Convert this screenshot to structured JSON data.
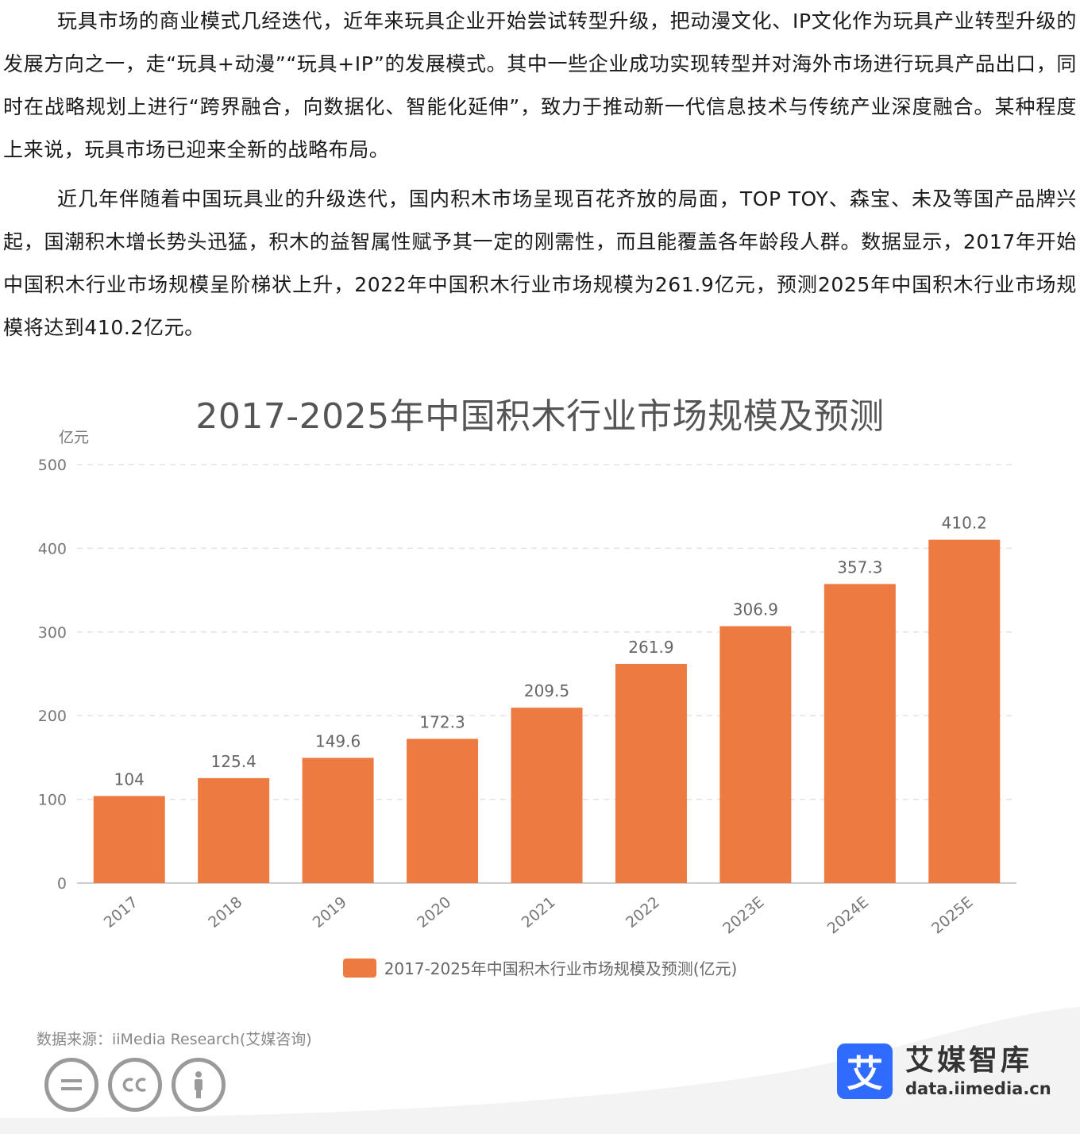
{
  "article": {
    "para1": "玩具市场的商业模式几经迭代，近年来玩具企业开始尝试转型升级，把动漫文化、IP文化作为玩具产业转型升级的发展方向之一，走“玩具+动漫”“玩具+IP”的发展模式。其中一些企业成功实现转型并对海外市场进行玩具产品出口，同时在战略规划上进行“跨界融合，向数据化、智能化延伸”，致力于推动新一代信息技术与传统产业深度融合。某种程度上来说，玩具市场已迎来全新的战略布局。",
    "para2": "近几年伴随着中国玩具业的升级迭代，国内积木市场呈现百花齐放的局面，TOP TOY、森宝、未及等国产品牌兴起，国潮积木增长势头迅猛，积木的益智属性赋予其一定的刚需性，而且能覆盖各年龄段人群。数据显示，2017年开始中国积木行业市场规模呈阶梯状上升，2022年中国积木行业市场规模为261.9亿元，预测2025年中国积木行业市场规模将达到410.2亿元。"
  },
  "chart_data": {
    "type": "bar",
    "title": "2017-2025年中国积木行业市场规模及预测",
    "ylabel": "亿元",
    "xlabel": "",
    "categories": [
      "2017",
      "2018",
      "2019",
      "2020",
      "2021",
      "2022",
      "2023E",
      "2024E",
      "2025E"
    ],
    "series": [
      {
        "name": "2017-2025年中国积木行业市场规模及预测(亿元)",
        "values": [
          104,
          125.4,
          149.6,
          172.3,
          209.5,
          261.9,
          306.9,
          357.3,
          410.2
        ],
        "color": "#ec7a41"
      }
    ],
    "ylim": [
      0,
      500
    ],
    "yticks": [
      0,
      100,
      200,
      300,
      400,
      500
    ],
    "grid": true,
    "legend_position": "bottom"
  },
  "footer": {
    "source": "数据来源：iiMedia Research(艾媒咨询)",
    "license_icons": [
      "cc-nd-icon",
      "cc-icon",
      "cc-by-icon"
    ],
    "brand_logo_char": "艾",
    "brand_name": "艾媒智库",
    "brand_url": "data.iimedia.cn",
    "brand_color": "#2f6bff"
  }
}
